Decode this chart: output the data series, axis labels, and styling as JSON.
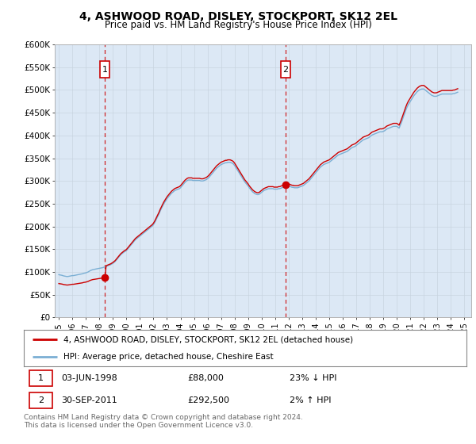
{
  "title": "4, ASHWOOD ROAD, DISLEY, STOCKPORT, SK12 2EL",
  "subtitle": "Price paid vs. HM Land Registry's House Price Index (HPI)",
  "background_color": "#ffffff",
  "plot_bg_color": "#dce8f5",
  "grid_color": "#c8d8e8",
  "ylim": [
    0,
    600000
  ],
  "yticks": [
    0,
    50000,
    100000,
    150000,
    200000,
    250000,
    300000,
    350000,
    400000,
    450000,
    500000,
    550000,
    600000
  ],
  "ytick_labels": [
    "£0",
    "£50K",
    "£100K",
    "£150K",
    "£200K",
    "£250K",
    "£300K",
    "£350K",
    "£400K",
    "£450K",
    "£500K",
    "£550K",
    "£600K"
  ],
  "xlim_start": 1994.7,
  "xlim_end": 2025.5,
  "sale1_x": 1998.42,
  "sale1_y": 88000,
  "sale1_label": "1",
  "sale2_x": 2011.75,
  "sale2_y": 292500,
  "sale2_label": "2",
  "sale_color": "#cc0000",
  "hpi_color": "#7bafd4",
  "dashed_line_color": "#cc0000",
  "legend_label_sale": "4, ASHWOOD ROAD, DISLEY, STOCKPORT, SK12 2EL (detached house)",
  "legend_label_hpi": "HPI: Average price, detached house, Cheshire East",
  "annotation1_date": "03-JUN-1998",
  "annotation1_price": "£88,000",
  "annotation1_hpi": "23% ↓ HPI",
  "annotation2_date": "30-SEP-2011",
  "annotation2_price": "£292,500",
  "annotation2_hpi": "2% ↑ HPI",
  "footer": "Contains HM Land Registry data © Crown copyright and database right 2024.\nThis data is licensed under the Open Government Licence v3.0.",
  "hpi_data_x": [
    1995.0,
    1995.083,
    1995.167,
    1995.25,
    1995.333,
    1995.417,
    1995.5,
    1995.583,
    1995.667,
    1995.75,
    1995.833,
    1995.917,
    1996.0,
    1996.083,
    1996.167,
    1996.25,
    1996.333,
    1996.417,
    1996.5,
    1996.583,
    1996.667,
    1996.75,
    1996.833,
    1996.917,
    1997.0,
    1997.083,
    1997.167,
    1997.25,
    1997.333,
    1997.417,
    1997.5,
    1997.583,
    1997.667,
    1997.75,
    1997.833,
    1997.917,
    1998.0,
    1998.083,
    1998.167,
    1998.25,
    1998.333,
    1998.417,
    1998.5,
    1998.583,
    1998.667,
    1998.75,
    1998.833,
    1998.917,
    1999.0,
    1999.083,
    1999.167,
    1999.25,
    1999.333,
    1999.417,
    1999.5,
    1999.583,
    1999.667,
    1999.75,
    1999.833,
    1999.917,
    2000.0,
    2000.083,
    2000.167,
    2000.25,
    2000.333,
    2000.417,
    2000.5,
    2000.583,
    2000.667,
    2000.75,
    2000.833,
    2000.917,
    2001.0,
    2001.083,
    2001.167,
    2001.25,
    2001.333,
    2001.417,
    2001.5,
    2001.583,
    2001.667,
    2001.75,
    2001.833,
    2001.917,
    2002.0,
    2002.083,
    2002.167,
    2002.25,
    2002.333,
    2002.417,
    2002.5,
    2002.583,
    2002.667,
    2002.75,
    2002.833,
    2002.917,
    2003.0,
    2003.083,
    2003.167,
    2003.25,
    2003.333,
    2003.417,
    2003.5,
    2003.583,
    2003.667,
    2003.75,
    2003.833,
    2003.917,
    2004.0,
    2004.083,
    2004.167,
    2004.25,
    2004.333,
    2004.417,
    2004.5,
    2004.583,
    2004.667,
    2004.75,
    2004.833,
    2004.917,
    2005.0,
    2005.083,
    2005.167,
    2005.25,
    2005.333,
    2005.417,
    2005.5,
    2005.583,
    2005.667,
    2005.75,
    2005.833,
    2005.917,
    2006.0,
    2006.083,
    2006.167,
    2006.25,
    2006.333,
    2006.417,
    2006.5,
    2006.583,
    2006.667,
    2006.75,
    2006.833,
    2006.917,
    2007.0,
    2007.083,
    2007.167,
    2007.25,
    2007.333,
    2007.417,
    2007.5,
    2007.583,
    2007.667,
    2007.75,
    2007.833,
    2007.917,
    2008.0,
    2008.083,
    2008.167,
    2008.25,
    2008.333,
    2008.417,
    2008.5,
    2008.583,
    2008.667,
    2008.75,
    2008.833,
    2008.917,
    2009.0,
    2009.083,
    2009.167,
    2009.25,
    2009.333,
    2009.417,
    2009.5,
    2009.583,
    2009.667,
    2009.75,
    2009.833,
    2009.917,
    2010.0,
    2010.083,
    2010.167,
    2010.25,
    2010.333,
    2010.417,
    2010.5,
    2010.583,
    2010.667,
    2010.75,
    2010.833,
    2010.917,
    2011.0,
    2011.083,
    2011.167,
    2011.25,
    2011.333,
    2011.417,
    2011.5,
    2011.583,
    2011.667,
    2011.75,
    2011.833,
    2011.917,
    2012.0,
    2012.083,
    2012.167,
    2012.25,
    2012.333,
    2012.417,
    2012.5,
    2012.583,
    2012.667,
    2012.75,
    2012.833,
    2012.917,
    2013.0,
    2013.083,
    2013.167,
    2013.25,
    2013.333,
    2013.417,
    2013.5,
    2013.583,
    2013.667,
    2013.75,
    2013.833,
    2013.917,
    2014.0,
    2014.083,
    2014.167,
    2014.25,
    2014.333,
    2014.417,
    2014.5,
    2014.583,
    2014.667,
    2014.75,
    2014.833,
    2014.917,
    2015.0,
    2015.083,
    2015.167,
    2015.25,
    2015.333,
    2015.417,
    2015.5,
    2015.583,
    2015.667,
    2015.75,
    2015.833,
    2015.917,
    2016.0,
    2016.083,
    2016.167,
    2016.25,
    2016.333,
    2016.417,
    2016.5,
    2016.583,
    2016.667,
    2016.75,
    2016.833,
    2016.917,
    2017.0,
    2017.083,
    2017.167,
    2017.25,
    2017.333,
    2017.417,
    2017.5,
    2017.583,
    2017.667,
    2017.75,
    2017.833,
    2017.917,
    2018.0,
    2018.083,
    2018.167,
    2018.25,
    2018.333,
    2018.417,
    2018.5,
    2018.583,
    2018.667,
    2018.75,
    2018.833,
    2018.917,
    2019.0,
    2019.083,
    2019.167,
    2019.25,
    2019.333,
    2019.417,
    2019.5,
    2019.583,
    2019.667,
    2019.75,
    2019.833,
    2019.917,
    2020.0,
    2020.083,
    2020.167,
    2020.25,
    2020.333,
    2020.417,
    2020.5,
    2020.583,
    2020.667,
    2020.75,
    2020.833,
    2020.917,
    2021.0,
    2021.083,
    2021.167,
    2021.25,
    2021.333,
    2021.417,
    2021.5,
    2021.583,
    2021.667,
    2021.75,
    2021.833,
    2021.917,
    2022.0,
    2022.083,
    2022.167,
    2022.25,
    2022.333,
    2022.417,
    2022.5,
    2022.583,
    2022.667,
    2022.75,
    2022.833,
    2022.917,
    2023.0,
    2023.083,
    2023.167,
    2023.25,
    2023.333,
    2023.417,
    2023.5,
    2023.583,
    2023.667,
    2023.75,
    2023.833,
    2023.917,
    2024.0,
    2024.083,
    2024.167,
    2024.25,
    2024.333,
    2024.417,
    2024.5
  ],
  "hpi_data_y": [
    94000,
    93500,
    93000,
    92500,
    91500,
    91000,
    90500,
    90000,
    90000,
    90500,
    91000,
    91500,
    92000,
    92000,
    92500,
    93000,
    93500,
    94000,
    94500,
    95000,
    95500,
    96000,
    97000,
    97500,
    98000,
    99000,
    100000,
    101500,
    103000,
    104000,
    105000,
    105500,
    106000,
    106500,
    107000,
    107500,
    108000,
    108500,
    109000,
    109500,
    110500,
    111000,
    112000,
    113000,
    114000,
    115000,
    116000,
    117500,
    119000,
    121000,
    123000,
    126000,
    129000,
    132000,
    135000,
    138000,
    140000,
    142000,
    144000,
    145500,
    147000,
    150000,
    153000,
    156000,
    159000,
    162000,
    165000,
    168000,
    171000,
    173000,
    175000,
    177000,
    179000,
    181000,
    183000,
    185000,
    187000,
    189000,
    191000,
    193000,
    195000,
    197000,
    199000,
    201000,
    204000,
    208000,
    213000,
    218000,
    223000,
    228000,
    234000,
    239000,
    244000,
    249000,
    253000,
    257000,
    261000,
    264000,
    267000,
    270000,
    273000,
    275000,
    277000,
    279000,
    280000,
    281000,
    282000,
    283000,
    285000,
    288000,
    291000,
    294000,
    297000,
    299000,
    301000,
    302000,
    302000,
    302000,
    302000,
    301000,
    301000,
    301000,
    301000,
    301000,
    301000,
    301000,
    300000,
    300000,
    300000,
    301000,
    302000,
    303000,
    305000,
    307000,
    310000,
    313000,
    316000,
    319000,
    322000,
    325000,
    328000,
    330000,
    332000,
    334000,
    336000,
    337000,
    338000,
    339000,
    340000,
    340000,
    341000,
    341000,
    341000,
    340000,
    339000,
    337000,
    334000,
    330000,
    326000,
    322000,
    318000,
    314000,
    310000,
    306000,
    302000,
    298000,
    295000,
    292000,
    289000,
    285000,
    282000,
    279000,
    276000,
    274000,
    272000,
    271000,
    270000,
    270000,
    271000,
    273000,
    275000,
    277000,
    279000,
    280000,
    281000,
    282000,
    283000,
    283000,
    283000,
    283000,
    283000,
    282000,
    282000,
    282000,
    282000,
    283000,
    283000,
    284000,
    285000,
    286000,
    287000,
    288000,
    289000,
    289000,
    289000,
    288000,
    287000,
    286000,
    286000,
    285000,
    285000,
    285000,
    285000,
    286000,
    287000,
    288000,
    289000,
    290000,
    292000,
    294000,
    296000,
    298000,
    300000,
    303000,
    306000,
    309000,
    312000,
    315000,
    318000,
    321000,
    324000,
    327000,
    330000,
    332000,
    334000,
    336000,
    337000,
    338000,
    339000,
    340000,
    341000,
    343000,
    345000,
    347000,
    349000,
    351000,
    353000,
    355000,
    357000,
    358000,
    359000,
    360000,
    361000,
    362000,
    363000,
    364000,
    365000,
    367000,
    369000,
    371000,
    373000,
    374000,
    375000,
    376000,
    378000,
    380000,
    382000,
    384000,
    386000,
    388000,
    390000,
    391000,
    392000,
    393000,
    394000,
    395000,
    397000,
    399000,
    401000,
    402000,
    403000,
    404000,
    405000,
    406000,
    407000,
    408000,
    408000,
    408000,
    409000,
    410000,
    412000,
    414000,
    415000,
    416000,
    417000,
    418000,
    419000,
    420000,
    420000,
    420000,
    420000,
    418000,
    416000,
    422000,
    428000,
    435000,
    442000,
    449000,
    456000,
    462000,
    467000,
    471000,
    475000,
    479000,
    483000,
    487000,
    490000,
    493000,
    496000,
    498000,
    500000,
    501000,
    502000,
    502000,
    502000,
    500000,
    498000,
    496000,
    494000,
    492000,
    490000,
    488000,
    487000,
    486000,
    486000,
    486000,
    487000,
    488000,
    489000,
    490000,
    491000,
    491000,
    491000,
    491000,
    491000,
    491000,
    491000,
    491000,
    491000,
    491000,
    492000,
    492000,
    493000,
    494000,
    495000
  ],
  "xticks": [
    1995,
    1996,
    1997,
    1998,
    1999,
    2000,
    2001,
    2002,
    2003,
    2004,
    2005,
    2006,
    2007,
    2008,
    2009,
    2010,
    2011,
    2012,
    2013,
    2014,
    2015,
    2016,
    2017,
    2018,
    2019,
    2020,
    2021,
    2022,
    2023,
    2024,
    2025
  ]
}
